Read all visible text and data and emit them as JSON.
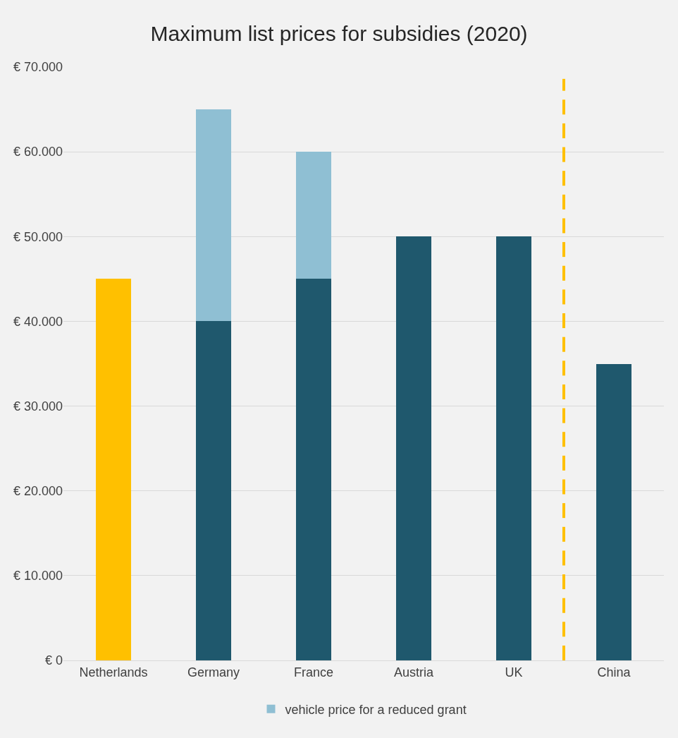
{
  "chart_data": {
    "type": "bar",
    "title": "Maximum list prices for subsidies (2020)",
    "categories": [
      "Netherlands",
      "Germany",
      "France",
      "Austria",
      "UK",
      "China"
    ],
    "stacked": true,
    "series": [
      {
        "colors": [
          "#ffc000",
          "#1f586d",
          "#1f586d",
          "#1f586d",
          "#1f586d",
          "#1f586d"
        ],
        "values": [
          45000,
          40000,
          45000,
          50000,
          50000,
          35000
        ]
      },
      {
        "name": "vehicle price for a reduced grant",
        "color": "#8fbfd3",
        "values": [
          null,
          25000,
          15000,
          null,
          null,
          null
        ]
      }
    ],
    "ylim": [
      0,
      70000
    ],
    "yticks": [
      {
        "value": 0,
        "label": "€ 0"
      },
      {
        "value": 10000,
        "label": "€ 10.000"
      },
      {
        "value": 20000,
        "label": "€ 20.000"
      },
      {
        "value": 30000,
        "label": "€ 30.000"
      },
      {
        "value": 40000,
        "label": "€ 40.000"
      },
      {
        "value": 50000,
        "label": "€ 50.000"
      },
      {
        "value": 60000,
        "label": "€ 60.000"
      },
      {
        "value": 70000,
        "label": "€ 70.000"
      }
    ],
    "grid": "y",
    "legend": "bottom"
  }
}
